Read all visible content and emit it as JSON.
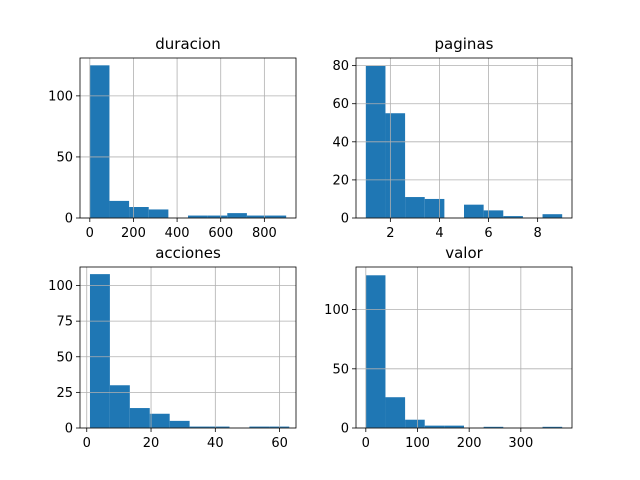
{
  "chart_data": [
    {
      "type": "bar",
      "title": "duracion",
      "xlim": [
        -45,
        945
      ],
      "ylim": [
        0,
        131
      ],
      "xticks": [
        0,
        200,
        400,
        600,
        800
      ],
      "yticks": [
        0,
        50,
        100
      ],
      "grid": true,
      "bin_edges": [
        0,
        90,
        180,
        270,
        360,
        450,
        540,
        630,
        720,
        810,
        900
      ],
      "counts": [
        125,
        14,
        9,
        7,
        0,
        2,
        2,
        4,
        2,
        2
      ],
      "color": "#1f77b4"
    },
    {
      "type": "bar",
      "title": "paginas",
      "xlim": [
        0.6,
        9.4
      ],
      "ylim": [
        0,
        84
      ],
      "xticks": [
        2,
        4,
        6,
        8
      ],
      "yticks": [
        0,
        20,
        40,
        60,
        80
      ],
      "grid": true,
      "bin_edges": [
        1,
        1.8,
        2.6,
        3.4,
        4.2,
        5.0,
        5.8,
        6.6,
        7.4,
        8.2,
        9.0
      ],
      "counts": [
        80,
        55,
        11,
        10,
        0,
        7,
        4,
        1,
        0,
        2
      ],
      "color": "#1f77b4"
    },
    {
      "type": "bar",
      "title": "acciones",
      "xlim": [
        -2.1,
        65.1
      ],
      "ylim": [
        0,
        113
      ],
      "xticks": [
        0,
        20,
        40,
        60
      ],
      "yticks": [
        0,
        25,
        50,
        75,
        100
      ],
      "grid": true,
      "bin_edges": [
        1,
        7.2,
        13.4,
        19.6,
        25.8,
        32,
        38.2,
        44.4,
        50.6,
        56.8,
        63
      ],
      "counts": [
        108,
        30,
        14,
        10,
        5,
        1,
        1,
        0,
        1,
        1
      ],
      "color": "#1f77b4"
    },
    {
      "type": "bar",
      "title": "valor",
      "xlim": [
        -19,
        399
      ],
      "ylim": [
        0,
        136
      ],
      "xticks": [
        0,
        100,
        200,
        300
      ],
      "yticks": [
        0,
        50,
        100
      ],
      "grid": true,
      "bin_edges": [
        0,
        38,
        76,
        114,
        152,
        190,
        228,
        266,
        304,
        342,
        380
      ],
      "counts": [
        129,
        26,
        7,
        2,
        2,
        0,
        1,
        0,
        0,
        1
      ],
      "color": "#1f77b4"
    }
  ]
}
